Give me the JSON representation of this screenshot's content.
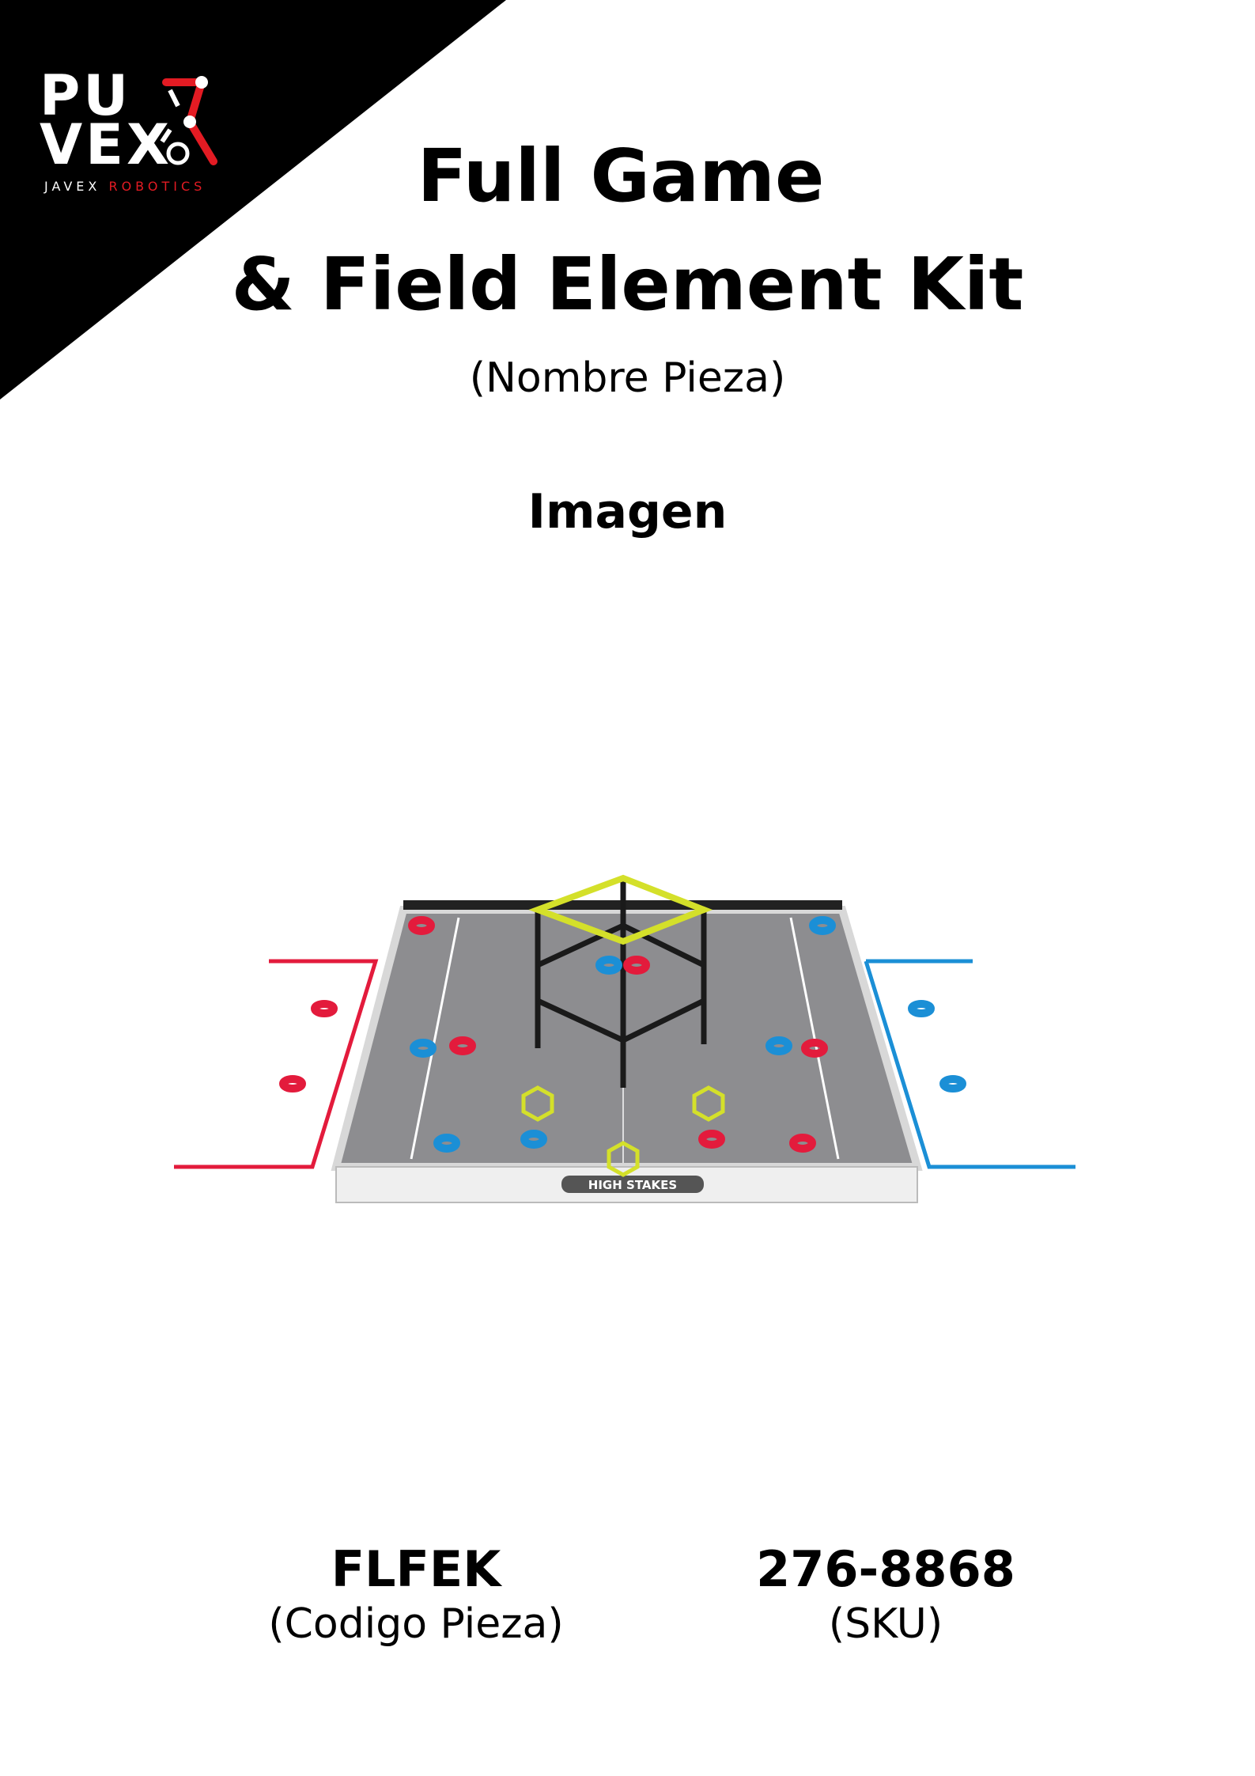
{
  "brand": {
    "logo_line1": "PU",
    "logo_line2": "VEX",
    "logo_sub_a": "JAVEX ",
    "logo_sub_b": "ROBOTICS"
  },
  "title_line1": "Full Game",
  "title_line2": "& Field Element Kit",
  "subtitle": "(Nombre Pieza)",
  "image_label": "Imagen",
  "field_banner": "HIGH STAKES",
  "part_code": {
    "value": "FLFEK",
    "caption": "(Codigo Pieza)"
  },
  "sku": {
    "value": "276-8868",
    "caption": "(SKU)"
  },
  "colors": {
    "red": "#e31b3c",
    "blue": "#1b8fd6",
    "yellow": "#d4e02a",
    "field_gray": "#8d8d90",
    "black": "#000000"
  }
}
